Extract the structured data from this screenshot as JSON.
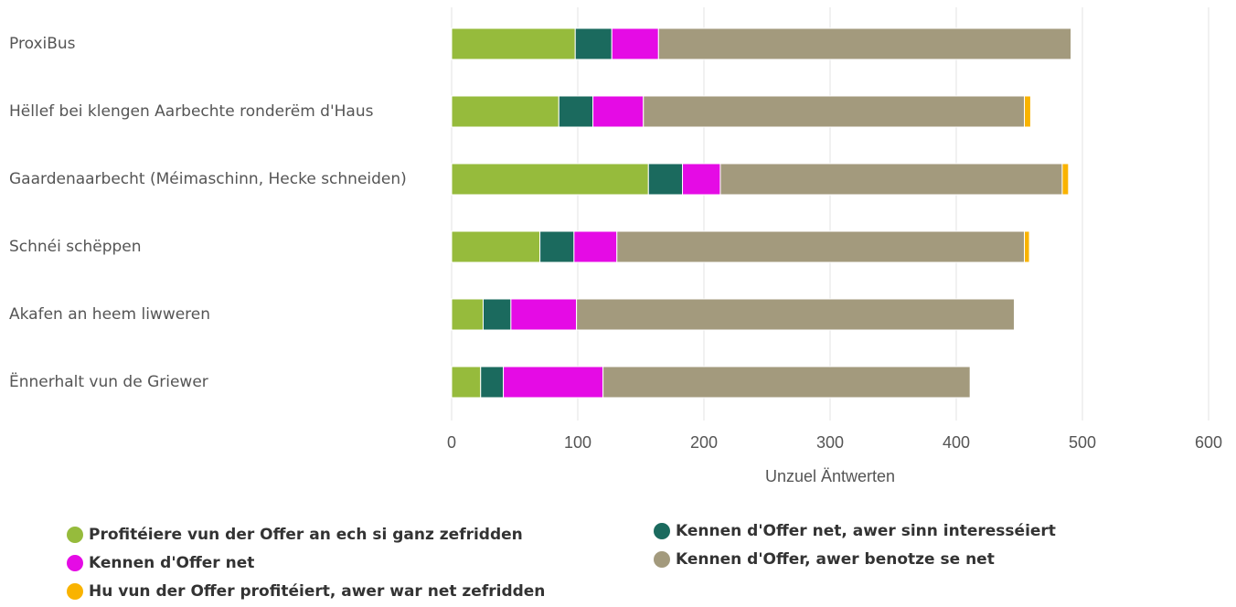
{
  "chart_data": {
    "type": "stacked-bar-horizontal",
    "categories": [
      "ProxiBus",
      "Hëllef bei klengen Aarbechte ronderëm d'Haus",
      "Gaardenaarbecht (Méimaschinn, Hecke schneiden)",
      "Schnéi schëppen",
      "Akafen an heem liwweren",
      "Ënnerhalt vun de Griewer"
    ],
    "series": [
      {
        "name": "Profitéiere vun der Offer an ech si ganz zefridden",
        "color": "#96bb3c",
        "values": [
          98,
          85,
          156,
          70,
          25,
          23
        ]
      },
      {
        "name": "Kennen d'Offer net, awer sinn interesséiert",
        "color": "#1b6a5e",
        "values": [
          29,
          27,
          27,
          27,
          22,
          18
        ]
      },
      {
        "name": "Kennen d'Offer net",
        "color": "#e50be5",
        "values": [
          37,
          40,
          30,
          34,
          52,
          79
        ]
      },
      {
        "name": "Kennen d'Offer, awer benotze se net",
        "color": "#a39a7d",
        "values": [
          327,
          302,
          271,
          323,
          347,
          291
        ]
      },
      {
        "name": "Hu vun der Offer profitéiert, awer war net zefridden",
        "color": "#f9b300",
        "values": [
          0,
          5,
          5,
          4,
          0,
          0
        ]
      }
    ],
    "xlabel": "Unzuel Äntwerten",
    "xlim": [
      0,
      600
    ],
    "xticks": [
      0,
      100,
      200,
      300,
      400,
      500,
      600
    ],
    "grid": true
  }
}
